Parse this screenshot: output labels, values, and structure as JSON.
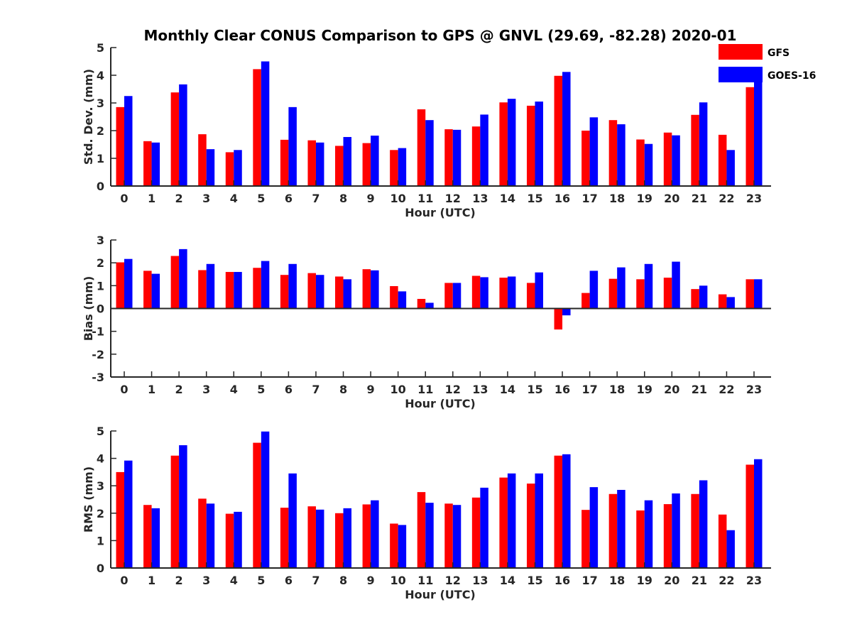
{
  "chart_data": {
    "title": "Monthly Clear CONUS Comparison to GPS @ GNVL (29.69, -82.28) 2020-01",
    "type": "bar",
    "legend": {
      "placement": "top-right",
      "entries": [
        {
          "name": "GFS",
          "color": "#ff0000"
        },
        {
          "name": "GOES-16",
          "color": "#0000ff"
        }
      ]
    },
    "categories": [
      "0",
      "1",
      "2",
      "3",
      "4",
      "5",
      "6",
      "7",
      "8",
      "9",
      "10",
      "11",
      "12",
      "13",
      "14",
      "15",
      "16",
      "17",
      "18",
      "19",
      "20",
      "21",
      "22",
      "23"
    ],
    "panels": [
      {
        "id": "std",
        "type": "bar",
        "xlabel": "Hour (UTC)",
        "ylabel": "Std. Dev. (mm)",
        "ylim": [
          0,
          5
        ],
        "yticks": [
          0,
          1,
          2,
          3,
          4,
          5
        ],
        "series": [
          {
            "name": "GFS",
            "color": "#ff0000",
            "values": [
              2.85,
              1.62,
              3.38,
              1.87,
              1.22,
              4.22,
              1.67,
              1.65,
              1.45,
              1.55,
              1.3,
              2.77,
              2.05,
              2.15,
              3.02,
              2.9,
              3.98,
              2.0,
              2.38,
              1.68,
              1.93,
              2.57,
              1.85,
              3.57
            ]
          },
          {
            "name": "GOES-16",
            "color": "#0000ff",
            "values": [
              3.25,
              1.57,
              3.67,
              1.33,
              1.3,
              4.5,
              2.85,
              1.57,
              1.77,
              1.82,
              1.37,
              2.38,
              2.03,
              2.58,
              3.15,
              3.05,
              4.12,
              2.48,
              2.23,
              1.52,
              1.83,
              3.02,
              1.3,
              3.95
            ]
          }
        ]
      },
      {
        "id": "bias",
        "type": "bar",
        "xlabel": "Hour (UTC)",
        "ylabel": "Bias (mm)",
        "ylim": [
          -3,
          3
        ],
        "yticks": [
          -3,
          -2,
          -1,
          0,
          1,
          2,
          3
        ],
        "series": [
          {
            "name": "GFS",
            "color": "#ff0000",
            "values": [
              2.02,
              1.65,
              2.3,
              1.68,
              1.6,
              1.78,
              1.47,
              1.55,
              1.4,
              1.72,
              0.98,
              0.42,
              1.12,
              1.43,
              1.35,
              1.12,
              -0.92,
              0.68,
              1.3,
              1.28,
              1.35,
              0.85,
              0.62,
              1.28
            ]
          },
          {
            "name": "GOES-16",
            "color": "#0000ff",
            "values": [
              2.17,
              1.52,
              2.6,
              1.95,
              1.6,
              2.08,
              1.95,
              1.47,
              1.28,
              1.67,
              0.75,
              0.25,
              1.12,
              1.37,
              1.4,
              1.58,
              -0.3,
              1.65,
              1.8,
              1.95,
              2.05,
              1.0,
              0.5,
              1.28
            ]
          }
        ]
      },
      {
        "id": "rms",
        "type": "bar",
        "xlabel": "Hour (UTC)",
        "ylabel": "RMS (mm)",
        "ylim": [
          0,
          5
        ],
        "yticks": [
          0,
          1,
          2,
          3,
          4,
          5
        ],
        "series": [
          {
            "name": "GFS",
            "color": "#ff0000",
            "values": [
              3.5,
              2.3,
              4.1,
              2.53,
              1.98,
              4.57,
              2.2,
              2.25,
              2.0,
              2.32,
              1.62,
              2.77,
              2.35,
              2.57,
              3.3,
              3.08,
              4.1,
              2.12,
              2.7,
              2.1,
              2.33,
              2.7,
              1.95,
              3.77
            ]
          },
          {
            "name": "GOES-16",
            "color": "#0000ff",
            "values": [
              3.92,
              2.18,
              4.48,
              2.35,
              2.05,
              4.98,
              3.45,
              2.13,
              2.18,
              2.47,
              1.57,
              2.38,
              2.3,
              2.93,
              3.45,
              3.45,
              4.15,
              2.95,
              2.85,
              2.47,
              2.72,
              3.2,
              1.38,
              3.97
            ]
          }
        ]
      }
    ]
  }
}
